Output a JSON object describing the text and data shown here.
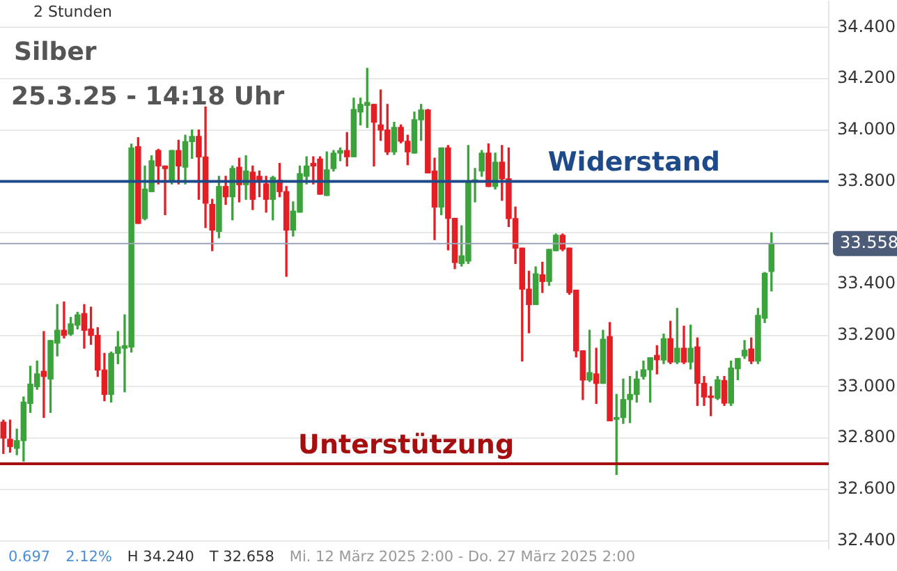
{
  "chart_data": {
    "type": "candlestick",
    "title": "Silber",
    "subtitle": "25.3.25 - 14:18 Uhr",
    "annotations": [
      "2 Stunden",
      "0.697",
      "2.12%",
      "H 34.240",
      "T 32.658",
      "Mi. 12 März 2025 2:00 - Do. 27 März 2025 2:00"
    ],
    "categories": [
      null,
      null,
      null,
      null,
      null,
      null,
      null,
      null,
      null,
      null,
      null,
      null,
      null,
      null,
      null,
      null,
      null,
      null,
      null,
      null,
      null,
      null,
      null,
      null,
      null,
      null,
      null,
      null,
      null,
      null,
      null,
      null,
      null,
      null,
      null,
      null,
      null,
      null,
      null,
      null,
      null,
      null,
      null,
      null,
      null,
      null,
      null,
      null,
      null,
      null,
      null,
      null,
      null,
      null,
      null,
      null,
      null,
      null,
      null,
      null,
      null,
      null,
      null,
      null,
      null,
      null,
      null,
      null,
      null,
      null,
      null,
      null,
      null,
      null,
      null,
      null,
      null,
      null,
      null,
      null,
      null,
      null,
      null,
      null,
      null,
      null,
      null,
      null,
      null,
      null,
      null,
      null,
      null,
      null,
      null,
      null,
      null,
      null,
      null,
      null,
      null,
      null,
      null,
      null,
      null,
      null,
      null,
      null,
      null,
      null,
      null,
      null,
      null,
      null,
      null,
      null,
      null,
      null,
      null,
      null,
      null,
      null,
      null
    ],
    "ohlc": [
      [
        32.862,
        32.87,
        32.74,
        32.8
      ],
      [
        32.795,
        32.87,
        32.745,
        32.767
      ],
      [
        32.76,
        32.835,
        32.735,
        32.79
      ],
      [
        32.79,
        32.96,
        32.71,
        32.94
      ],
      [
        32.935,
        33.08,
        32.9,
        33.01
      ],
      [
        33.0,
        33.1,
        32.99,
        33.05
      ],
      [
        33.06,
        33.215,
        32.88,
        33.04
      ],
      [
        33.03,
        33.18,
        32.9,
        33.18
      ],
      [
        33.17,
        33.32,
        33.12,
        33.22
      ],
      [
        33.22,
        33.33,
        33.19,
        33.2
      ],
      [
        33.205,
        33.27,
        33.2,
        33.245
      ],
      [
        33.24,
        33.29,
        33.225,
        33.28
      ],
      [
        33.285,
        33.32,
        33.15,
        33.22
      ],
      [
        33.225,
        33.31,
        33.165,
        33.2
      ],
      [
        33.2,
        33.23,
        33.04,
        33.065
      ],
      [
        33.065,
        33.13,
        32.945,
        32.97
      ],
      [
        32.97,
        33.135,
        32.94,
        33.13
      ],
      [
        33.13,
        33.215,
        33.09,
        33.155
      ],
      [
        33.15,
        33.28,
        32.98,
        33.16
      ],
      [
        33.155,
        33.945,
        33.135,
        33.93
      ],
      [
        33.935,
        33.97,
        33.636,
        33.636
      ],
      [
        33.655,
        33.86,
        33.65,
        33.77
      ],
      [
        33.76,
        33.9,
        33.76,
        33.88
      ],
      [
        33.92,
        33.925,
        33.79,
        33.86
      ],
      [
        33.86,
        33.86,
        33.67,
        33.85
      ],
      [
        33.8,
        33.92,
        33.79,
        33.92
      ],
      [
        33.92,
        33.96,
        33.79,
        33.86
      ],
      [
        33.855,
        33.98,
        33.79,
        33.955
      ],
      [
        33.955,
        34.0,
        33.89,
        33.975
      ],
      [
        33.975,
        34.0,
        33.73,
        33.895
      ],
      [
        33.895,
        34.09,
        33.62,
        33.715
      ],
      [
        33.71,
        33.73,
        33.53,
        33.61
      ],
      [
        33.605,
        33.82,
        33.58,
        33.78
      ],
      [
        33.78,
        33.82,
        33.71,
        33.74
      ],
      [
        33.74,
        33.86,
        33.65,
        33.85
      ],
      [
        33.855,
        33.89,
        33.72,
        33.787
      ],
      [
        33.787,
        33.9,
        33.73,
        33.84
      ],
      [
        33.836,
        33.86,
        33.69,
        33.73
      ],
      [
        33.82,
        33.84,
        33.74,
        33.805
      ],
      [
        33.79,
        33.82,
        33.68,
        33.73
      ],
      [
        33.73,
        33.82,
        33.65,
        33.815
      ],
      [
        33.805,
        33.87,
        33.74,
        33.76
      ],
      [
        33.76,
        33.78,
        33.43,
        33.61
      ],
      [
        33.61,
        33.72,
        33.587,
        33.684
      ],
      [
        33.68,
        33.86,
        33.68,
        33.83
      ],
      [
        33.82,
        33.896,
        33.79,
        33.86
      ],
      [
        33.87,
        33.896,
        33.79,
        33.86
      ],
      [
        33.887,
        33.896,
        33.75,
        33.75
      ],
      [
        33.745,
        33.915,
        33.745,
        33.845
      ],
      [
        33.85,
        33.92,
        33.84,
        33.91
      ],
      [
        33.91,
        33.93,
        33.88,
        33.92
      ],
      [
        33.92,
        33.99,
        33.86,
        33.896
      ],
      [
        33.896,
        34.124,
        33.896,
        34.08
      ],
      [
        34.07,
        34.124,
        34.02,
        34.1
      ],
      [
        34.096,
        34.24,
        34.01,
        34.107
      ],
      [
        34.1,
        34.1,
        33.86,
        34.03
      ],
      [
        34.02,
        34.156,
        33.96,
        34.0
      ],
      [
        34.0,
        34.1,
        33.905,
        33.915
      ],
      [
        33.915,
        34.03,
        33.905,
        34.01
      ],
      [
        34.01,
        34.02,
        33.95,
        33.956
      ],
      [
        33.956,
        33.98,
        33.865,
        33.915
      ],
      [
        33.91,
        34.07,
        33.91,
        34.04
      ],
      [
        34.04,
        34.1,
        33.96,
        34.078
      ],
      [
        34.078,
        34.08,
        33.833,
        33.833
      ],
      [
        33.84,
        33.89,
        33.573,
        33.7
      ],
      [
        33.7,
        33.93,
        33.67,
        33.93
      ],
      [
        33.93,
        33.94,
        33.533,
        33.656
      ],
      [
        33.656,
        33.656,
        33.46,
        33.484
      ],
      [
        33.48,
        33.627,
        33.47,
        33.51
      ],
      [
        33.49,
        33.94,
        33.48,
        33.8
      ],
      [
        33.8,
        33.85,
        33.72,
        33.806
      ],
      [
        33.84,
        33.92,
        33.82,
        33.91
      ],
      [
        33.91,
        33.946,
        33.78,
        33.78
      ],
      [
        33.78,
        33.91,
        33.77,
        33.875
      ],
      [
        33.875,
        33.94,
        33.726,
        33.81
      ],
      [
        33.81,
        33.93,
        33.624,
        33.655
      ],
      [
        33.655,
        33.7,
        33.48,
        33.54
      ],
      [
        33.54,
        33.54,
        33.1,
        33.38
      ],
      [
        33.38,
        33.45,
        33.21,
        33.32
      ],
      [
        33.32,
        33.467,
        33.32,
        33.44
      ],
      [
        33.436,
        33.485,
        33.367,
        33.41
      ],
      [
        33.41,
        33.535,
        33.395,
        33.535
      ],
      [
        33.53,
        33.595,
        33.53,
        33.59
      ],
      [
        33.59,
        33.595,
        33.53,
        33.536
      ],
      [
        33.54,
        33.54,
        33.36,
        33.367
      ],
      [
        33.376,
        33.376,
        33.116,
        33.14
      ],
      [
        33.14,
        33.14,
        32.95,
        33.026
      ],
      [
        33.026,
        33.22,
        33.02,
        33.055
      ],
      [
        33.05,
        33.15,
        32.935,
        33.013
      ],
      [
        33.013,
        33.22,
        33.013,
        33.185
      ],
      [
        33.195,
        33.25,
        32.867,
        32.867
      ],
      [
        32.873,
        32.97,
        32.658,
        32.88
      ],
      [
        32.88,
        33.03,
        32.857,
        32.95
      ],
      [
        32.95,
        33.04,
        32.86,
        32.97
      ],
      [
        32.97,
        33.06,
        32.94,
        33.03
      ],
      [
        33.04,
        33.1,
        33.03,
        33.066
      ],
      [
        33.066,
        33.113,
        32.94,
        33.113
      ],
      [
        33.122,
        33.16,
        33.05,
        33.105
      ],
      [
        33.104,
        33.205,
        33.09,
        33.187
      ],
      [
        33.187,
        33.255,
        33.09,
        33.096
      ],
      [
        33.096,
        33.305,
        33.09,
        33.15
      ],
      [
        33.15,
        33.236,
        33.09,
        33.096
      ],
      [
        33.096,
        33.24,
        33.069,
        33.15
      ],
      [
        33.155,
        33.19,
        32.927,
        33.013
      ],
      [
        33.013,
        33.04,
        32.927,
        32.96
      ],
      [
        32.964,
        33.0,
        32.887,
        32.958
      ],
      [
        32.955,
        33.04,
        32.95,
        33.027
      ],
      [
        33.024,
        33.04,
        32.927,
        32.936
      ],
      [
        32.936,
        33.1,
        32.927,
        33.073
      ],
      [
        33.07,
        33.11,
        33.027,
        33.11
      ],
      [
        33.12,
        33.18,
        33.11,
        33.142
      ],
      [
        33.147,
        33.19,
        33.09,
        33.1
      ],
      [
        33.1,
        33.305,
        33.09,
        33.278
      ],
      [
        33.267,
        33.445,
        33.25,
        33.442
      ],
      [
        33.449,
        33.6,
        33.373,
        33.558
      ],
      null,
      null,
      null,
      null,
      null,
      null,
      null,
      null
    ],
    "colors": [
      "#e31e24",
      "#e31e24",
      "#3ca33c",
      "#3ca33c",
      "#3ca33c",
      "#3ca33c",
      "#e31e24",
      "#3ca33c",
      "#3ca33c",
      "#e31e24",
      "#3ca33c",
      "#3ca33c",
      "#e31e24",
      "#e31e24",
      "#e31e24",
      "#e31e24",
      "#3ca33c",
      "#3ca33c",
      "#3ca33c",
      "#3ca33c",
      "#e31e24",
      "#3ca33c",
      "#3ca33c",
      "#e31e24",
      "#e31e24",
      "#3ca33c",
      "#e31e24",
      "#3ca33c",
      "#3ca33c",
      "#e31e24",
      "#e31e24",
      "#e31e24",
      "#3ca33c",
      "#e31e24",
      "#3ca33c",
      "#e31e24",
      "#3ca33c",
      "#e31e24",
      "#e31e24",
      "#e31e24",
      "#3ca33c",
      "#e31e24",
      "#e31e24",
      "#3ca33c",
      "#3ca33c",
      "#3ca33c",
      "#e31e24",
      "#e31e24",
      "#3ca33c",
      "#3ca33c",
      "#3ca33c",
      "#e31e24",
      "#3ca33c",
      "#3ca33c",
      "#3ca33c",
      "#e31e24",
      "#e31e24",
      "#e31e24",
      "#3ca33c",
      "#e31e24",
      "#e31e24",
      "#3ca33c",
      "#3ca33c",
      "#e31e24",
      "#e31e24",
      "#3ca33c",
      "#e31e24",
      "#e31e24",
      "#3ca33c",
      "#3ca33c",
      "#3ca33c",
      "#3ca33c",
      "#e31e24",
      "#3ca33c",
      "#e31e24",
      "#e31e24",
      "#e31e24",
      "#e31e24",
      "#e31e24",
      "#3ca33c",
      "#e31e24",
      "#3ca33c",
      "#3ca33c",
      "#e31e24",
      "#e31e24",
      "#e31e24",
      "#e31e24",
      "#3ca33c",
      "#e31e24",
      "#3ca33c",
      "#e31e24",
      "#3ca33c",
      "#3ca33c",
      "#3ca33c",
      "#3ca33c",
      "#3ca33c",
      "#3ca33c",
      "#e31e24",
      "#3ca33c",
      "#e31e24",
      "#3ca33c",
      "#e31e24",
      "#3ca33c",
      "#e31e24",
      "#e31e24",
      "#e31e24",
      "#3ca33c",
      "#e31e24",
      "#3ca33c",
      "#3ca33c",
      "#3ca33c",
      "#e31e24",
      "#3ca33c",
      "#3ca33c",
      "#3ca33c",
      null,
      null,
      null,
      null,
      null,
      null,
      null,
      null
    ],
    "ylim": [
      32.37,
      34.5
    ],
    "yticks": [
      {
        "value": 32.4,
        "label": "32.400"
      },
      {
        "value": 32.6,
        "label": "32.600"
      },
      {
        "value": 32.8,
        "label": "32.800"
      },
      {
        "value": 33.0,
        "label": "33.000"
      },
      {
        "value": 33.2,
        "label": "33.200"
      },
      {
        "value": 33.4,
        "label": "33.400"
      },
      {
        "value": 33.6,
        "label": null
      },
      {
        "value": 33.8,
        "label": "33.800"
      },
      {
        "value": 34.0,
        "label": "34.000"
      },
      {
        "value": 34.2,
        "label": "34.200"
      },
      {
        "value": 34.4,
        "label": "34.400"
      }
    ],
    "ref_lines": [
      {
        "axis": "y",
        "value": 33.558,
        "label": "33.558",
        "color": "#9aa5b8"
      },
      {
        "axis": "y",
        "value": 33.8,
        "label": "Widerstand",
        "color": "#1f4a8a"
      },
      {
        "axis": "y",
        "value": 32.7,
        "label": "Unterstützung",
        "color": "#a50f0f"
      }
    ],
    "grid": "y",
    "legend": false,
    "tick_labels": "y"
  }
}
